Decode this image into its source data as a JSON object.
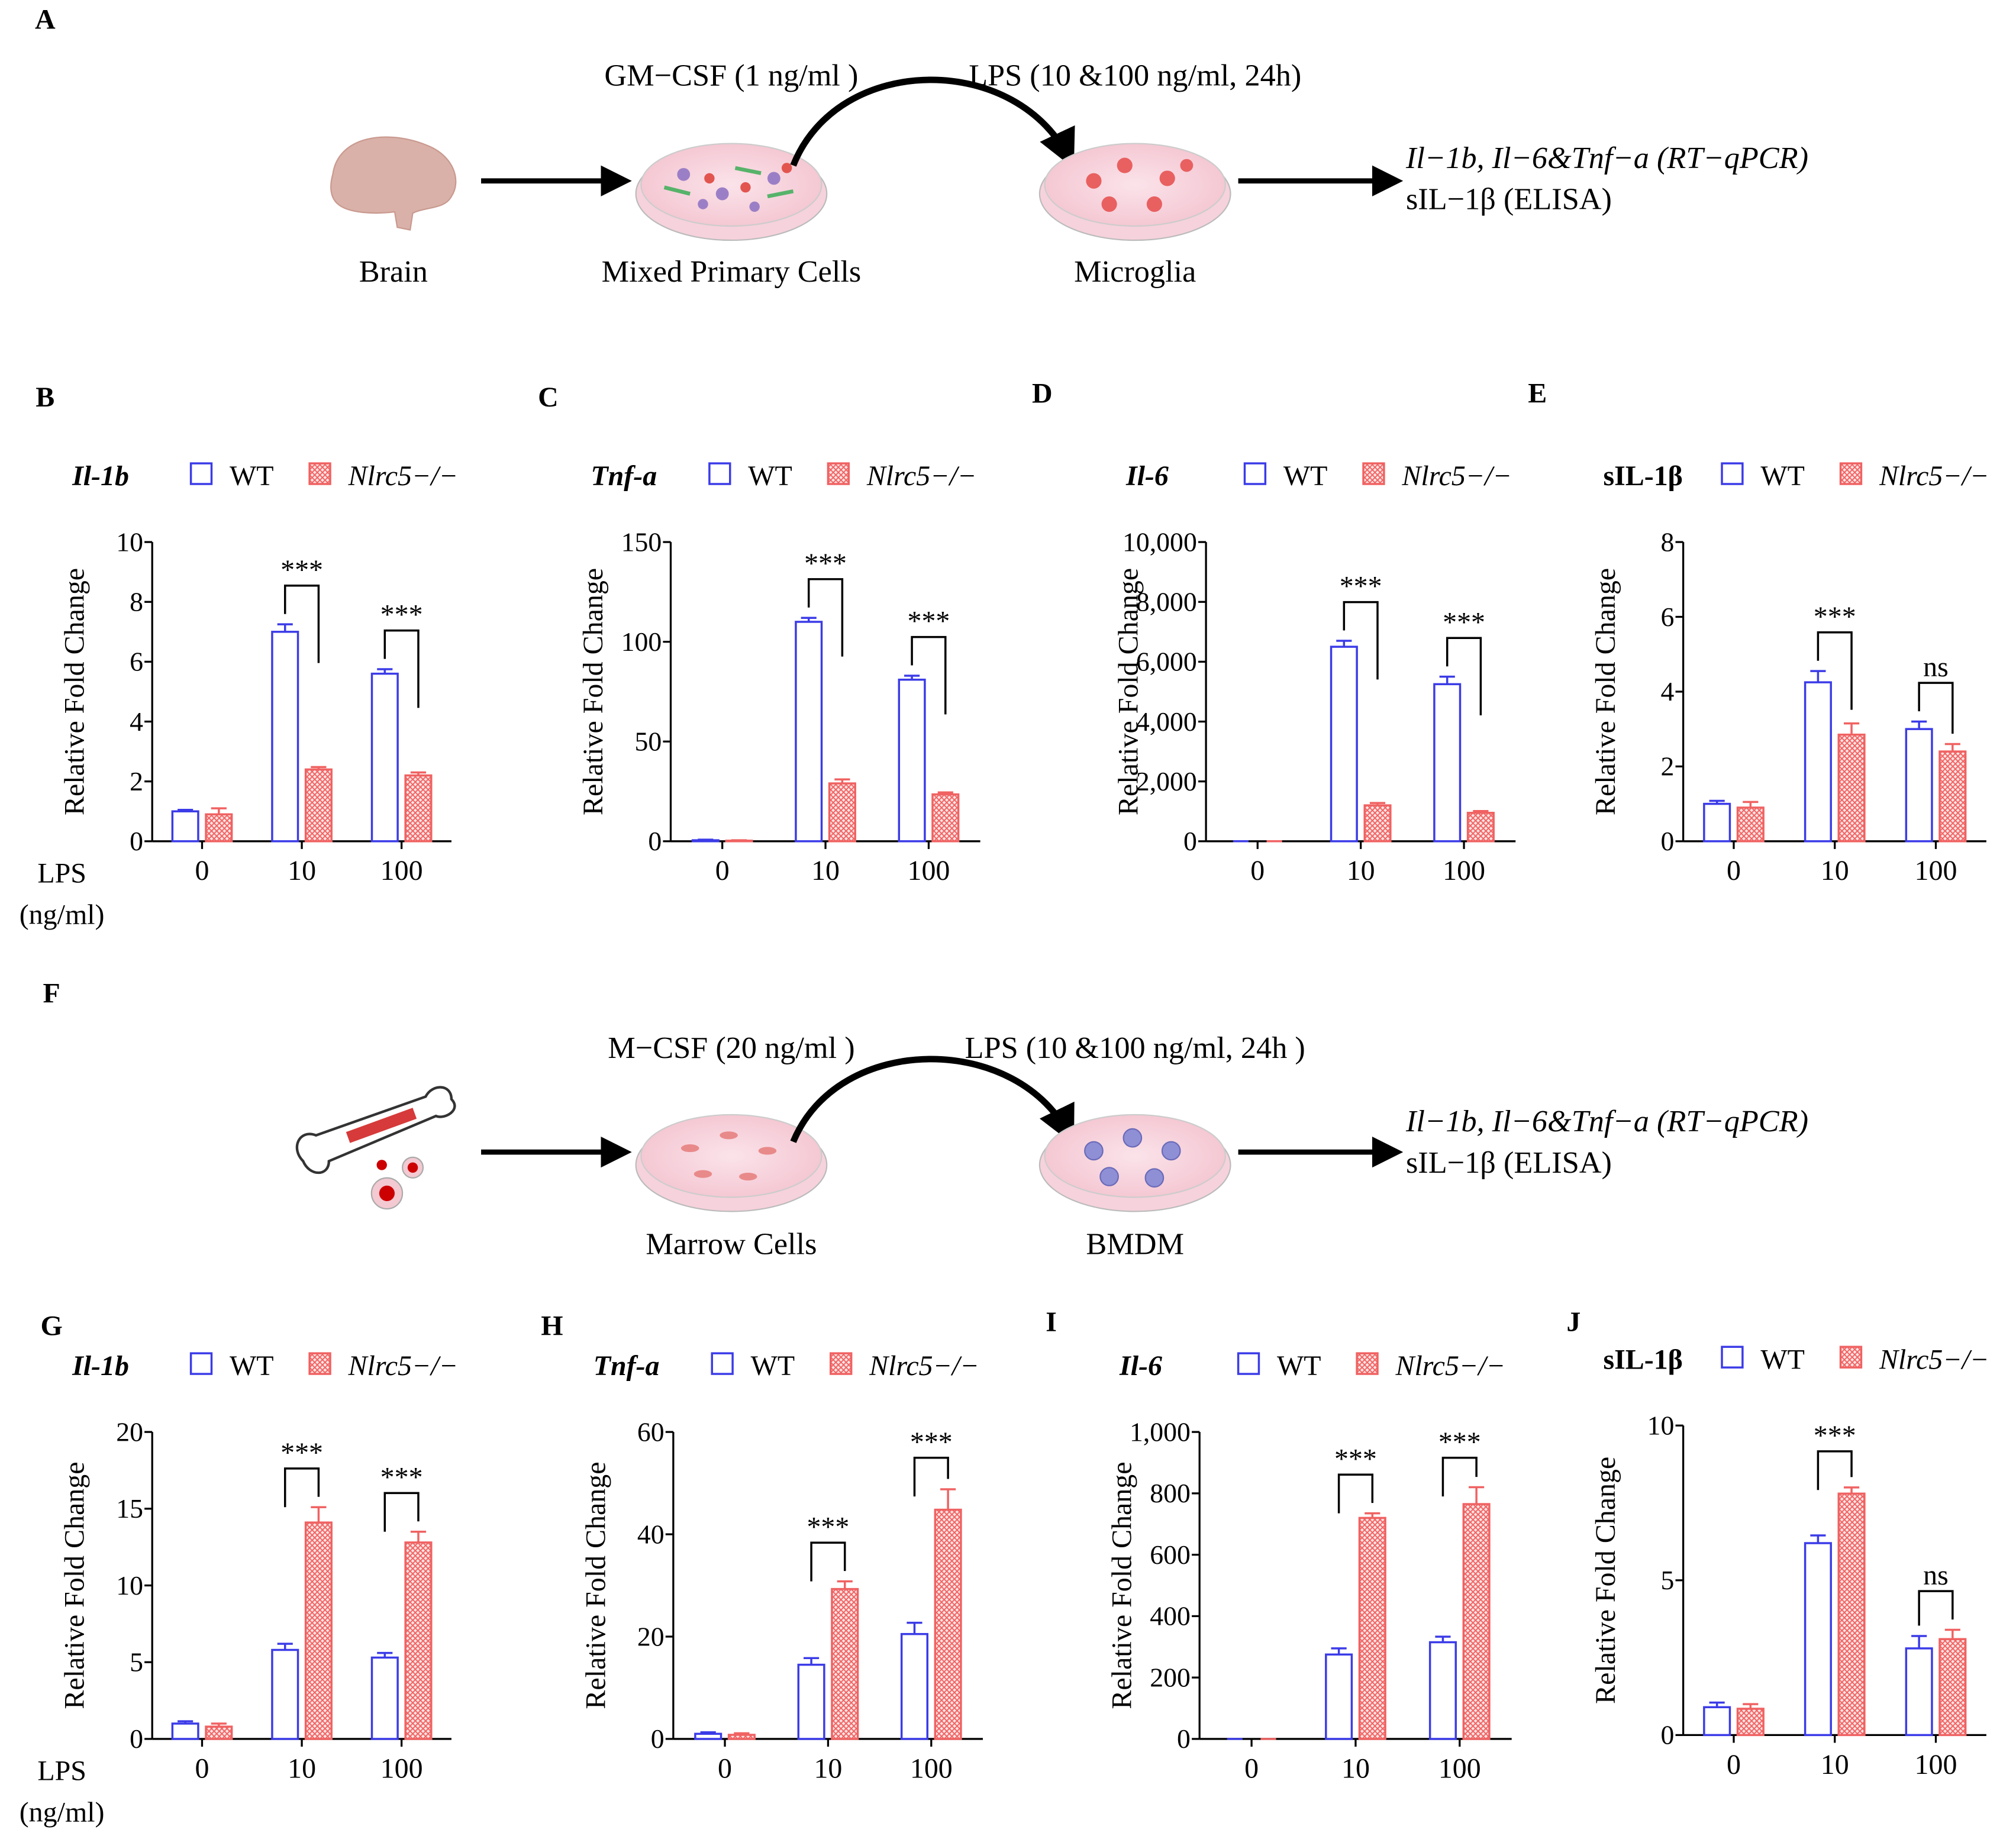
{
  "schemes": [
    {
      "panel": "A",
      "steps": [
        "Brain",
        "Mixed Primary Cells",
        "Microglia"
      ],
      "treatments": [
        "GM−CSF (1 ng/ml )",
        "LPS (10 &100 ng/ml, 24h)"
      ],
      "readouts": [
        "Il−1b, Il−6&Tnf−a (RT−qPCR)",
        "sIL−1β (ELISA)"
      ]
    },
    {
      "panel": "F",
      "steps": [
        "Marrow Cells",
        "BMDM"
      ],
      "treatments": [
        "M−CSF (20 ng/ml )",
        "LPS (10 &100 ng/ml, 24h )"
      ],
      "readouts": [
        "Il−1b, Il−6&Tnf−a (RT−qPCR)",
        "sIL−1β (ELISA)"
      ]
    }
  ],
  "chart_data": [
    {
      "type": "bar",
      "panel": "B",
      "title": "Il-1b",
      "title_italic": true,
      "ylabel": "Relative Fold Change",
      "xlabel": [
        "LPS",
        "(ng/ml)"
      ],
      "categories": [
        "0",
        "10",
        "100"
      ],
      "ylim": [
        0,
        10
      ],
      "yticks": [
        0,
        2,
        4,
        6,
        8,
        10
      ],
      "series": [
        {
          "name": "WT",
          "color": "#3b3be8",
          "style": "outline",
          "values": [
            1,
            7,
            5.6
          ],
          "errors": [
            0.05,
            0.25,
            0.15
          ]
        },
        {
          "name": "Nlrc5−/−",
          "color": "#f06262",
          "style": "hatched",
          "values": [
            0.9,
            2.4,
            2.2
          ],
          "errors": [
            0.2,
            0.08,
            0.1
          ]
        }
      ],
      "significance": [
        null,
        "***",
        "***"
      ]
    },
    {
      "type": "bar",
      "panel": "C",
      "title": "Tnf-a",
      "title_italic": true,
      "ylabel": "Relative Fold Change",
      "categories": [
        "0",
        "10",
        "100"
      ],
      "ylim": [
        0,
        150
      ],
      "yticks": [
        0,
        50,
        100,
        150
      ],
      "series": [
        {
          "name": "WT",
          "color": "#3b3be8",
          "style": "outline",
          "values": [
            0.5,
            110,
            81
          ],
          "errors": [
            0.3,
            2,
            2
          ]
        },
        {
          "name": "Nlrc5−/−",
          "color": "#f06262",
          "style": "hatched",
          "values": [
            0.3,
            29,
            23.5
          ],
          "errors": [
            0.2,
            2,
            1
          ]
        }
      ],
      "significance": [
        null,
        "***",
        "***"
      ]
    },
    {
      "type": "bar",
      "panel": "D",
      "title": "Il-6",
      "title_italic": true,
      "ylabel": "Relative Fold Change",
      "categories": [
        "0",
        "10",
        "100"
      ],
      "ylim": [
        0,
        10000
      ],
      "yticks": [
        0,
        {
          "value": 2000,
          "label": "2,000"
        },
        {
          "value": 4000,
          "label": "4,000"
        },
        {
          "value": 6000,
          "label": "6,000"
        },
        {
          "value": 8000,
          "label": "8,000"
        },
        {
          "value": 10000,
          "label": "10,000"
        }
      ],
      "series": [
        {
          "name": "WT",
          "color": "#3b3be8",
          "style": "outline",
          "values": [
            0,
            6500,
            5250
          ],
          "errors": [
            0,
            200,
            250
          ]
        },
        {
          "name": "Nlrc5−/−",
          "color": "#f06262",
          "style": "hatched",
          "values": [
            0,
            1200,
            950
          ],
          "errors": [
            0,
            80,
            60
          ]
        }
      ],
      "significance": [
        null,
        "***",
        "***"
      ]
    },
    {
      "type": "bar",
      "panel": "E",
      "title": "sIL-1β",
      "title_italic": false,
      "ylabel": "Relative Fold Change",
      "categories": [
        "0",
        "10",
        "100"
      ],
      "ylim": [
        0,
        8
      ],
      "yticks": [
        0,
        2,
        4,
        6,
        8
      ],
      "series": [
        {
          "name": "WT",
          "color": "#3b3be8",
          "style": "outline",
          "values": [
            1,
            4.25,
            3
          ],
          "errors": [
            0.08,
            0.3,
            0.2
          ]
        },
        {
          "name": "Nlrc5−/−",
          "color": "#f06262",
          "style": "hatched",
          "values": [
            0.9,
            2.85,
            2.4
          ],
          "errors": [
            0.15,
            0.3,
            0.2
          ]
        }
      ],
      "significance": [
        null,
        "***",
        "ns"
      ]
    },
    {
      "type": "bar",
      "panel": "G",
      "title": "Il-1b",
      "title_italic": true,
      "ylabel": "Relative Fold Change",
      "xlabel": [
        "LPS",
        "(ng/ml)"
      ],
      "categories": [
        "0",
        "10",
        "100"
      ],
      "ylim": [
        0,
        20
      ],
      "yticks": [
        0,
        5,
        10,
        15,
        20
      ],
      "series": [
        {
          "name": "WT",
          "color": "#3b3be8",
          "style": "outline",
          "values": [
            1,
            5.8,
            5.3
          ],
          "errors": [
            0.15,
            0.4,
            0.3
          ]
        },
        {
          "name": "Nlrc5−/−",
          "color": "#f06262",
          "style": "hatched",
          "values": [
            0.8,
            14.1,
            12.8
          ],
          "errors": [
            0.2,
            1,
            0.7
          ]
        }
      ],
      "significance": [
        null,
        "***",
        "***"
      ]
    },
    {
      "type": "bar",
      "panel": "H",
      "title": "Tnf-a",
      "title_italic": true,
      "ylabel": "Relative Fold Change",
      "categories": [
        "0",
        "10",
        "100"
      ],
      "ylim": [
        0,
        60
      ],
      "yticks": [
        0,
        20,
        40,
        60
      ],
      "series": [
        {
          "name": "WT",
          "color": "#3b3be8",
          "style": "outline",
          "values": [
            1,
            14.5,
            20.5
          ],
          "errors": [
            0.3,
            1.3,
            2.2
          ]
        },
        {
          "name": "Nlrc5−/−",
          "color": "#f06262",
          "style": "hatched",
          "values": [
            0.8,
            29.3,
            44.8
          ],
          "errors": [
            0.3,
            1.5,
            4
          ]
        }
      ],
      "significance": [
        null,
        "***",
        "***"
      ]
    },
    {
      "type": "bar",
      "panel": "I",
      "title": "Il-6",
      "title_italic": true,
      "ylabel": "Relative Fold Change",
      "categories": [
        "0",
        "10",
        "100"
      ],
      "ylim": [
        0,
        1000
      ],
      "yticks": [
        0,
        200,
        400,
        600,
        800,
        {
          "value": 1000,
          "label": "1,000"
        }
      ],
      "series": [
        {
          "name": "WT",
          "color": "#3b3be8",
          "style": "outline",
          "values": [
            0,
            275,
            315
          ],
          "errors": [
            0,
            20,
            18
          ]
        },
        {
          "name": "Nlrc5−/−",
          "color": "#f06262",
          "style": "hatched",
          "values": [
            0,
            720,
            765
          ],
          "errors": [
            0,
            15,
            55
          ]
        }
      ],
      "significance": [
        null,
        "***",
        "***"
      ]
    },
    {
      "type": "bar",
      "panel": "J",
      "title": "sIL-1β",
      "title_italic": false,
      "ylabel": "Relative Fold Change",
      "categories": [
        "0",
        "10",
        "100"
      ],
      "ylim": [
        0,
        10
      ],
      "yticks": [
        0,
        5,
        10
      ],
      "series": [
        {
          "name": "WT",
          "color": "#3b3be8",
          "style": "outline",
          "values": [
            0.9,
            6.2,
            2.8
          ],
          "errors": [
            0.15,
            0.25,
            0.4
          ]
        },
        {
          "name": "Nlrc5−/−",
          "color": "#f06262",
          "style": "hatched",
          "values": [
            0.85,
            7.8,
            3.1
          ],
          "errors": [
            0.15,
            0.2,
            0.3
          ]
        }
      ],
      "significance": [
        null,
        "***",
        "ns"
      ]
    }
  ]
}
